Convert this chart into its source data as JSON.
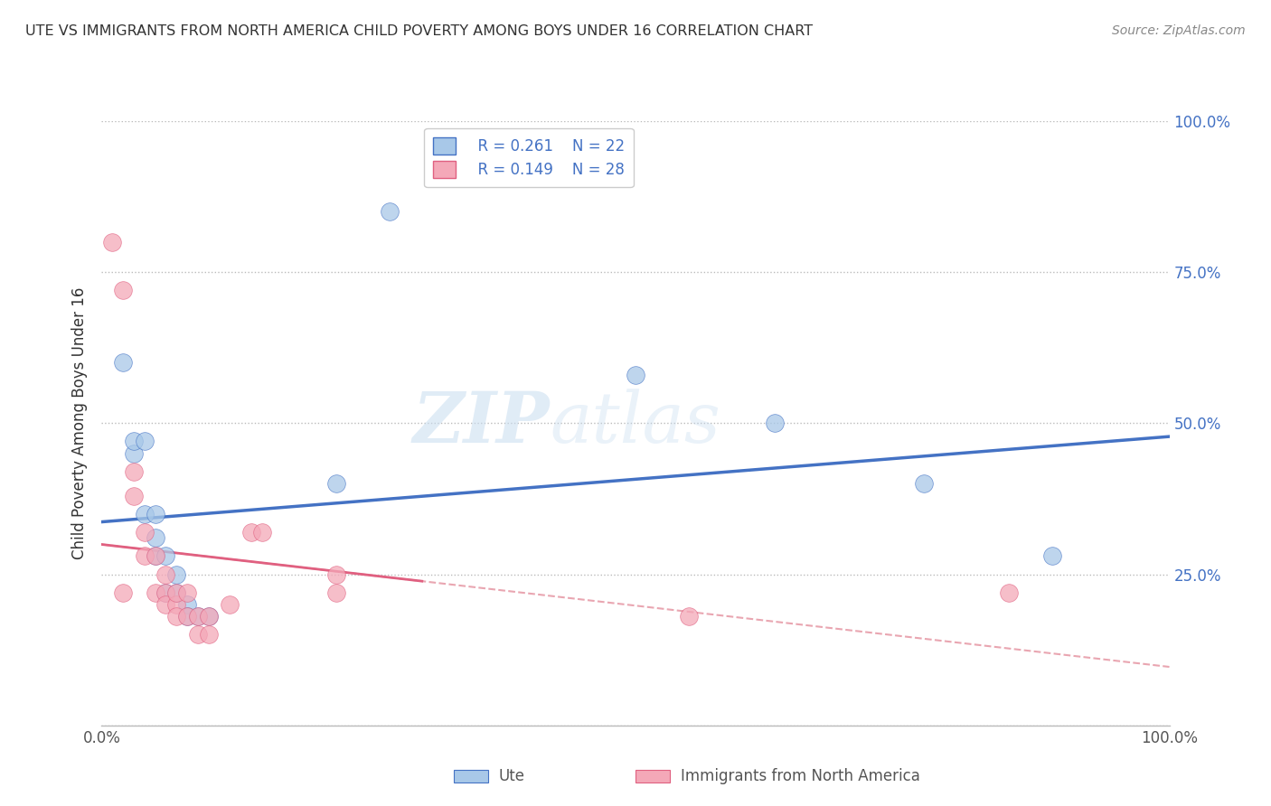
{
  "title": "UTE VS IMMIGRANTS FROM NORTH AMERICA CHILD POVERTY AMONG BOYS UNDER 16 CORRELATION CHART",
  "source": "Source: ZipAtlas.com",
  "xlabel": "",
  "ylabel": "Child Poverty Among Boys Under 16",
  "xlim": [
    0,
    1.0
  ],
  "ylim": [
    0,
    1.0
  ],
  "xtick_positions": [
    0.0,
    0.25,
    0.5,
    0.75,
    1.0
  ],
  "xticklabels": [
    "0.0%",
    "",
    "",
    "",
    "100.0%"
  ],
  "ytick_positions": [
    0.0,
    0.25,
    0.5,
    0.75,
    1.0
  ],
  "ytick_labels_right": [
    "",
    "25.0%",
    "50.0%",
    "75.0%",
    "100.0%"
  ],
  "watermark_zip": "ZIP",
  "watermark_atlas": "atlas",
  "legend_R1": "R = 0.261",
  "legend_N1": "N = 22",
  "legend_R2": "R = 0.149",
  "legend_N2": "N = 28",
  "legend_label1": "Ute",
  "legend_label2": "Immigrants from North America",
  "color_ute": "#a8c8e8",
  "color_immig": "#f4a8b8",
  "color_line_ute": "#4472c4",
  "color_line_immig": "#e06080",
  "color_r_value": "#4472c4",
  "ute_points": [
    [
      0.02,
      0.6
    ],
    [
      0.03,
      0.45
    ],
    [
      0.03,
      0.47
    ],
    [
      0.04,
      0.47
    ],
    [
      0.04,
      0.35
    ],
    [
      0.05,
      0.35
    ],
    [
      0.05,
      0.31
    ],
    [
      0.05,
      0.28
    ],
    [
      0.06,
      0.28
    ],
    [
      0.06,
      0.22
    ],
    [
      0.07,
      0.25
    ],
    [
      0.07,
      0.22
    ],
    [
      0.08,
      0.2
    ],
    [
      0.08,
      0.18
    ],
    [
      0.09,
      0.18
    ],
    [
      0.1,
      0.18
    ],
    [
      0.22,
      0.4
    ],
    [
      0.27,
      0.85
    ],
    [
      0.5,
      0.58
    ],
    [
      0.63,
      0.5
    ],
    [
      0.77,
      0.4
    ],
    [
      0.89,
      0.28
    ]
  ],
  "immig_points": [
    [
      0.01,
      0.8
    ],
    [
      0.02,
      0.72
    ],
    [
      0.02,
      0.22
    ],
    [
      0.03,
      0.42
    ],
    [
      0.03,
      0.38
    ],
    [
      0.04,
      0.32
    ],
    [
      0.04,
      0.28
    ],
    [
      0.05,
      0.28
    ],
    [
      0.05,
      0.22
    ],
    [
      0.06,
      0.25
    ],
    [
      0.06,
      0.22
    ],
    [
      0.06,
      0.2
    ],
    [
      0.07,
      0.2
    ],
    [
      0.07,
      0.18
    ],
    [
      0.07,
      0.22
    ],
    [
      0.08,
      0.22
    ],
    [
      0.08,
      0.18
    ],
    [
      0.09,
      0.18
    ],
    [
      0.09,
      0.15
    ],
    [
      0.1,
      0.15
    ],
    [
      0.1,
      0.18
    ],
    [
      0.12,
      0.2
    ],
    [
      0.14,
      0.32
    ],
    [
      0.15,
      0.32
    ],
    [
      0.22,
      0.22
    ],
    [
      0.22,
      0.25
    ],
    [
      0.55,
      0.18
    ],
    [
      0.85,
      0.22
    ]
  ],
  "background_color": "#ffffff",
  "grid_color": "#cccccc"
}
